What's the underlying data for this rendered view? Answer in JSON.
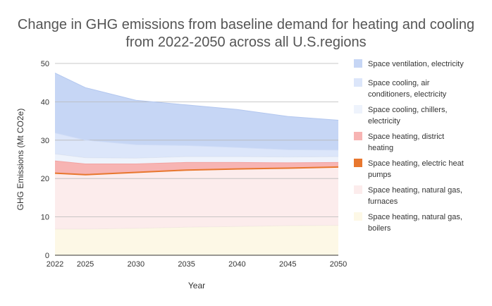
{
  "chart_data": {
    "type": "area",
    "title_line1": "Change in GHG emissions from baseline demand for heating and cooling",
    "title_line2": "from 2022-2050 across all U.S.regions",
    "xlabel": "Year",
    "ylabel": "GHG Emissions (Mt CO2e)",
    "x": [
      2022,
      2025,
      2030,
      2035,
      2040,
      2045,
      2050
    ],
    "ylim": [
      0,
      50
    ],
    "yticks": [
      0,
      10,
      20,
      30,
      40,
      50
    ],
    "grid": true,
    "legend_position": "right",
    "stacked": true,
    "series": [
      {
        "name": "Space heating, natural gas, boilers",
        "color": "#fdf8e6",
        "type": "area",
        "values": [
          6.8,
          6.8,
          7.0,
          7.3,
          7.5,
          7.7,
          7.8
        ]
      },
      {
        "name": "Space heating, natural gas, furnaces",
        "color": "#fcecec",
        "type": "area",
        "values": [
          14.6,
          14.2,
          14.6,
          14.9,
          15.0,
          15.0,
          15.2
        ]
      },
      {
        "name": "Space heating, electric heat pumps",
        "color": "#e8772e",
        "type": "line",
        "values": [
          0,
          0,
          0,
          0,
          0,
          0,
          0
        ]
      },
      {
        "name": "Space heating, district heating",
        "color": "#f7b4b3",
        "type": "area",
        "values": [
          3.2,
          2.8,
          2.2,
          2.0,
          1.7,
          1.4,
          1.2
        ]
      },
      {
        "name": "Space cooling, chillers, electricity",
        "color": "#eef3fc",
        "type": "area",
        "values": [
          1.8,
          1.6,
          1.5,
          1.5,
          1.5,
          1.5,
          1.5
        ]
      },
      {
        "name": "Space cooling, air conditioners, electricity",
        "color": "#dce6fa",
        "type": "area",
        "values": [
          5.5,
          4.6,
          3.5,
          2.9,
          2.4,
          1.9,
          1.7
        ]
      },
      {
        "name": "Space ventilation, electricity",
        "color": "#c6d6f5",
        "type": "area",
        "values": [
          15.6,
          13.7,
          11.6,
          10.6,
          9.9,
          8.7,
          7.8
        ]
      }
    ],
    "legend_order": [
      "Space ventilation, electricity",
      "Space cooling, air conditioners, electricity",
      "Space cooling, chillers, electricity",
      "Space heating, district heating",
      "Space heating, electric heat pumps",
      "Space heating, natural gas, furnaces",
      "Space heating, natural gas, boilers"
    ]
  }
}
